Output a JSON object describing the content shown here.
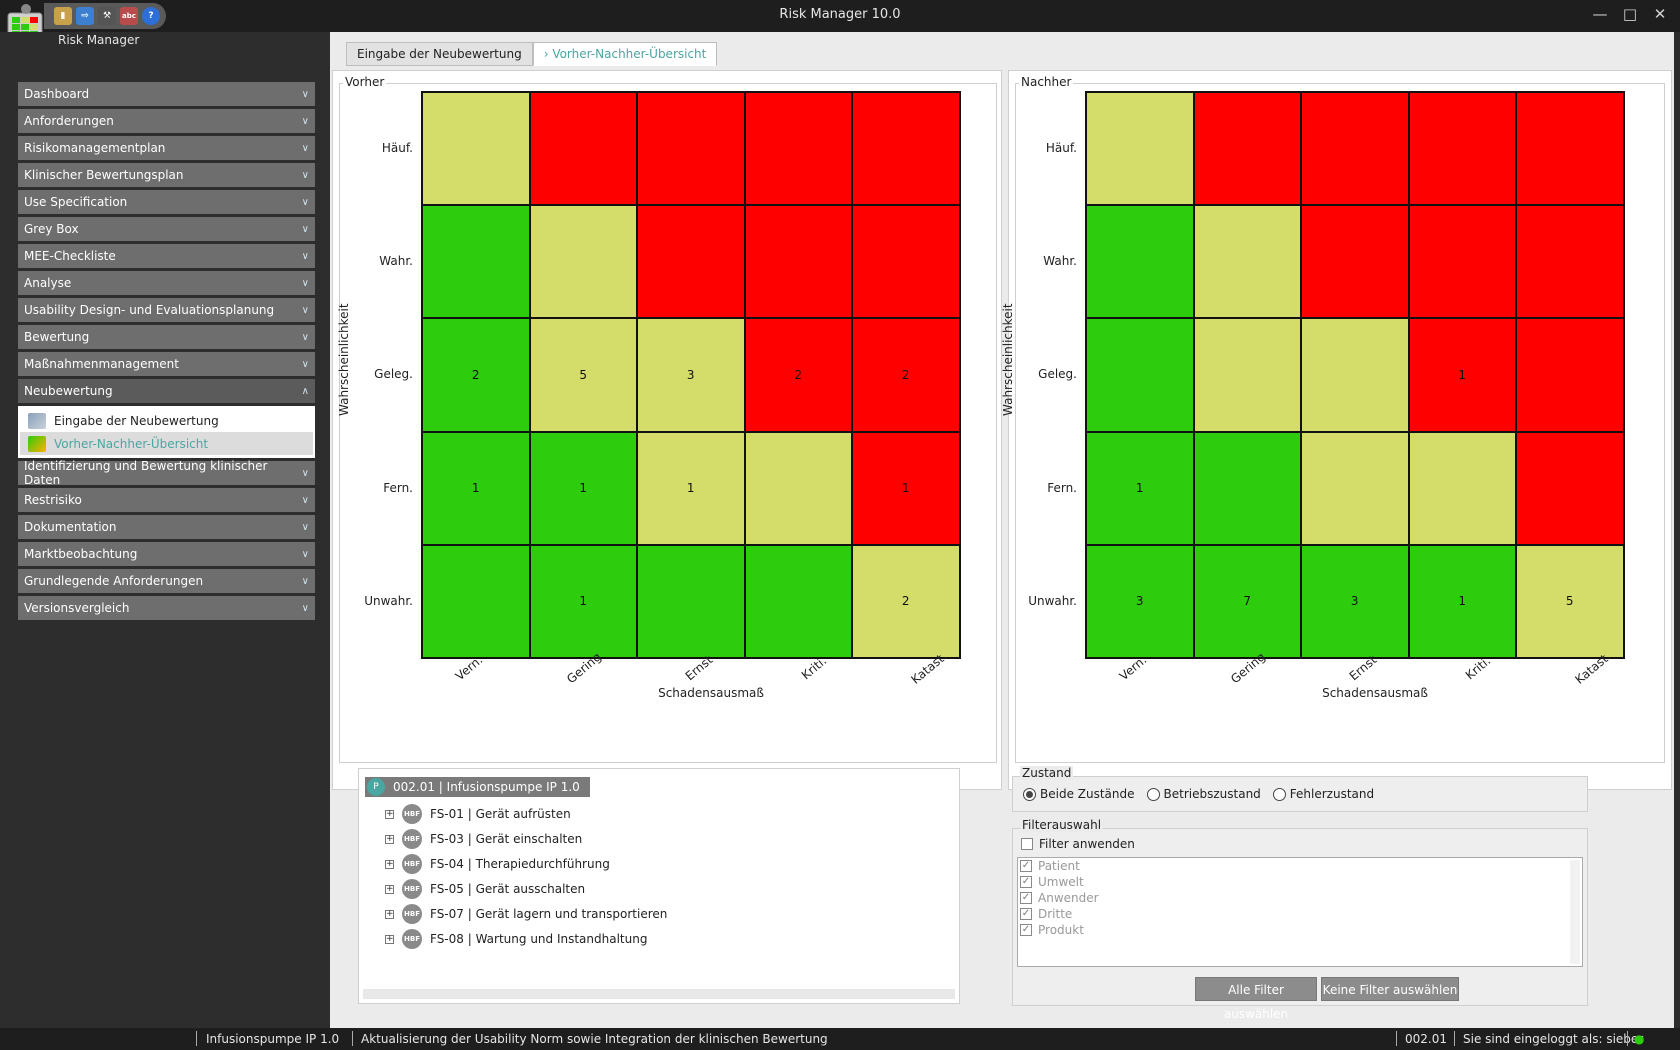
{
  "window": {
    "title": "Risk Manager   10.0",
    "app_label": "Risk Manager"
  },
  "sidebar": {
    "items": [
      {
        "label": "Dashboard"
      },
      {
        "label": "Anforderungen"
      },
      {
        "label": "Risikomanagementplan"
      },
      {
        "label": "Klinischer Bewertungsplan"
      },
      {
        "label": "Use Specification"
      },
      {
        "label": "Grey Box"
      },
      {
        "label": "MEE-Checkliste"
      },
      {
        "label": "Analyse"
      },
      {
        "label": "Usability Design- und Evaluationsplanung"
      },
      {
        "label": "Bewertung"
      },
      {
        "label": "Maßnahmenmanagement"
      },
      {
        "label": "Neubewertung"
      },
      {
        "label": "Identifizierung und Bewertung klinischer Daten"
      },
      {
        "label": "Restrisiko"
      },
      {
        "label": "Dokumentation"
      },
      {
        "label": "Marktbeobachtung"
      },
      {
        "label": "Grundlegende Anforderungen"
      },
      {
        "label": "Versionsvergleich"
      }
    ],
    "sub_items": [
      {
        "label": "Eingabe der Neubewertung"
      },
      {
        "label": "Vorher-Nachher-Übersicht"
      }
    ]
  },
  "tabs": [
    {
      "label": "Eingabe der Neubewertung"
    },
    {
      "label": "Vorher-Nachher-Übersicht"
    }
  ],
  "matrix_axes": {
    "rows": [
      "Häuf.",
      "Wahr.",
      "Geleg.",
      "Fern.",
      "Unwahr."
    ],
    "cols": [
      "Vern.",
      "Gering",
      "Ernst",
      "Kriti.",
      "Katast."
    ],
    "ylabel": "Wahrscheinlichkeit",
    "xlabel": "Schadensausmaß"
  },
  "vorher": {
    "label": "Vorher",
    "colors": [
      [
        "yellow",
        "red",
        "red",
        "red",
        "red"
      ],
      [
        "green",
        "yellow",
        "red",
        "red",
        "red"
      ],
      [
        "green",
        "yellow",
        "yellow",
        "red",
        "red"
      ],
      [
        "green",
        "green",
        "yellow",
        "yellow",
        "red"
      ],
      [
        "green",
        "green",
        "green",
        "green",
        "yellow"
      ]
    ],
    "counts": [
      [
        "",
        "",
        "",
        "",
        ""
      ],
      [
        "",
        "",
        "",
        "",
        ""
      ],
      [
        "2",
        "5",
        "3",
        "2",
        "2"
      ],
      [
        "1",
        "1",
        "1",
        "",
        "1"
      ],
      [
        "",
        "1",
        "",
        "",
        "2"
      ]
    ]
  },
  "nachher": {
    "label": "Nachher",
    "colors": [
      [
        "yellow",
        "red",
        "red",
        "red",
        "red"
      ],
      [
        "green",
        "yellow",
        "red",
        "red",
        "red"
      ],
      [
        "green",
        "yellow",
        "yellow",
        "red",
        "red"
      ],
      [
        "green",
        "green",
        "yellow",
        "yellow",
        "red"
      ],
      [
        "green",
        "green",
        "green",
        "green",
        "yellow"
      ]
    ],
    "counts": [
      [
        "",
        "",
        "",
        "",
        ""
      ],
      [
        "",
        "",
        "",
        "",
        ""
      ],
      [
        "",
        "",
        "",
        "1",
        ""
      ],
      [
        "1",
        "",
        "",
        "",
        ""
      ],
      [
        "3",
        "7",
        "3",
        "1",
        "5"
      ]
    ]
  },
  "colors": {
    "green": "#2dcc0c",
    "yellow": "#d4dd6a",
    "red": "#ff0000",
    "accent": "#4aa6a0"
  },
  "tree": {
    "root_badge": "P",
    "root": "002.01   |   Infusionspumpe IP 1.0",
    "badge": "HBF",
    "items": [
      {
        "text": "FS-01   |   Gerät aufrüsten"
      },
      {
        "text": "FS-03   |   Gerät einschalten"
      },
      {
        "text": "FS-04   |   Therapiedurchführung"
      },
      {
        "text": "FS-05   |   Gerät ausschalten"
      },
      {
        "text": "FS-07   |   Gerät lagern und transportieren"
      },
      {
        "text": "FS-08   |   Wartung und Instandhaltung"
      }
    ]
  },
  "zustand": {
    "label": "Zustand",
    "options": [
      "Beide Zustände",
      "Betriebszustand",
      "Fehlerzustand"
    ],
    "selected": "Beide Zustände"
  },
  "filter": {
    "label": "Filterauswahl",
    "apply_label": "Filter anwenden",
    "options": [
      "Patient",
      "Umwelt",
      "Anwender",
      "Dritte",
      "Produkt"
    ],
    "btn_all": "Alle Filter auswählen",
    "btn_none": "Keine Filter auswählen"
  },
  "status": {
    "product": "Infusionspumpe IP 1.0",
    "message": "Aktualisierung der Usability Norm sowie Integration der klinischen Bewertung",
    "version": "002.01",
    "login": "Sie sind eingeloggt als: sieber"
  }
}
